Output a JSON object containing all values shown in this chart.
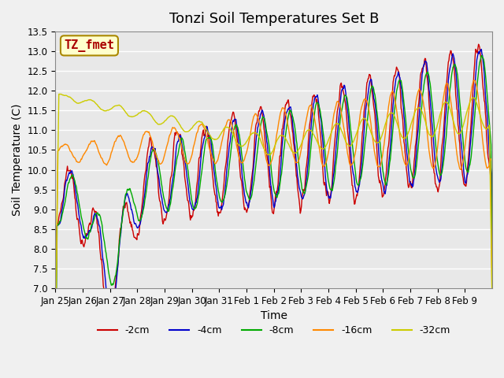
{
  "title": "Tonzi Soil Temperatures Set B",
  "xlabel": "Time",
  "ylabel": "Soil Temperature (C)",
  "annotation": "TZ_fmet",
  "annotation_bg": "#ffffcc",
  "annotation_border": "#aa8800",
  "annotation_text_color": "#aa0000",
  "ylim": [
    7.0,
    13.5
  ],
  "yticks": [
    7.0,
    7.5,
    8.0,
    8.5,
    9.0,
    9.5,
    10.0,
    10.5,
    11.0,
    11.5,
    12.0,
    12.5,
    13.0,
    13.5
  ],
  "xtick_labels": [
    "Jan 25",
    "Jan 26",
    "Jan 27",
    "Jan 28",
    "Jan 29",
    "Jan 30",
    "Jan 31",
    "Feb 1",
    "Feb 2",
    "Feb 3",
    "Feb 4",
    "Feb 5",
    "Feb 6",
    "Feb 7",
    "Feb 8",
    "Feb 9"
  ],
  "line_colors": [
    "#cc0000",
    "#0000cc",
    "#00aa00",
    "#ff8800",
    "#cccc00"
  ],
  "line_labels": [
    "-2cm",
    "-4cm",
    "-8cm",
    "-16cm",
    "-32cm"
  ],
  "plot_bg": "#e8e8e8",
  "fig_bg": "#f0f0f0",
  "grid_color": "#ffffff",
  "title_fontsize": 13,
  "axis_label_fontsize": 10,
  "tick_fontsize": 8.5,
  "legend_fontsize": 9
}
